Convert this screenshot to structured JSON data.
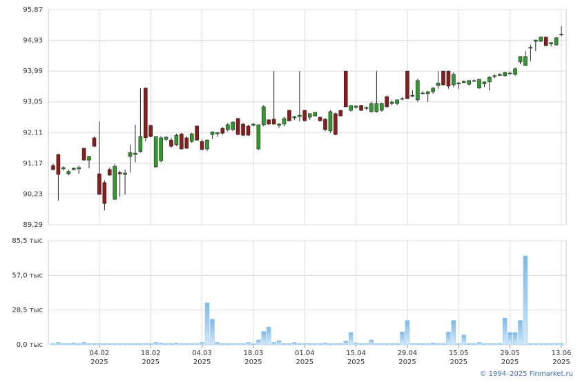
{
  "chart_data": {
    "type": "candlestick",
    "candles": [
      {
        "open": 91.1,
        "high": 91.15,
        "low": 90.96,
        "close": 90.98
      },
      {
        "open": 91.44,
        "high": 91.46,
        "low": 90.03,
        "close": 90.83
      },
      {
        "open": 91.0,
        "high": 91.08,
        "low": 90.96,
        "close": 91.04
      },
      {
        "open": 90.85,
        "high": 90.98,
        "low": 90.81,
        "close": 90.92
      },
      {
        "open": 90.98,
        "high": 91.04,
        "low": 90.96,
        "close": 91.02
      },
      {
        "open": 91.0,
        "high": 91.1,
        "low": 90.85,
        "close": 91.04
      },
      {
        "open": 91.63,
        "high": 91.65,
        "low": 91.25,
        "close": 91.27
      },
      {
        "open": 91.27,
        "high": 91.4,
        "low": 91.02,
        "close": 91.38
      },
      {
        "open": 91.95,
        "high": 91.99,
        "low": 91.67,
        "close": 91.69
      },
      {
        "open": 90.85,
        "high": 92.45,
        "low": 90.2,
        "close": 90.22
      },
      {
        "open": 90.58,
        "high": 90.65,
        "low": 89.73,
        "close": 89.94
      },
      {
        "open": 90.98,
        "high": 91.04,
        "low": 90.79,
        "close": 90.81
      },
      {
        "open": 90.07,
        "high": 91.15,
        "low": 90.05,
        "close": 91.08
      },
      {
        "open": 90.89,
        "high": 90.94,
        "low": 90.15,
        "close": 90.85
      },
      {
        "open": 90.83,
        "high": 90.98,
        "low": 90.22,
        "close": 90.87
      },
      {
        "open": 91.38,
        "high": 91.74,
        "low": 90.89,
        "close": 91.5
      },
      {
        "open": 91.44,
        "high": 92.35,
        "low": 91.2,
        "close": 91.48
      },
      {
        "open": 91.53,
        "high": 93.47,
        "low": 91.5,
        "close": 91.99
      },
      {
        "open": 93.47,
        "high": 93.49,
        "low": 91.84,
        "close": 91.95
      },
      {
        "open": 92.33,
        "high": 92.35,
        "low": 91.97,
        "close": 91.99
      },
      {
        "open": 91.06,
        "high": 92.0,
        "low": 91.04,
        "close": 91.99
      },
      {
        "open": 91.25,
        "high": 92.0,
        "low": 91.2,
        "close": 91.95
      },
      {
        "open": 91.9,
        "high": 92.0,
        "low": 91.85,
        "close": 91.97
      },
      {
        "open": 91.88,
        "high": 91.95,
        "low": 91.65,
        "close": 91.69
      },
      {
        "open": 91.74,
        "high": 92.08,
        "low": 91.7,
        "close": 92.03
      },
      {
        "open": 92.07,
        "high": 92.1,
        "low": 91.59,
        "close": 91.61
      },
      {
        "open": 91.95,
        "high": 92.0,
        "low": 91.61,
        "close": 91.63
      },
      {
        "open": 91.84,
        "high": 92.1,
        "low": 91.8,
        "close": 92.07
      },
      {
        "open": 92.31,
        "high": 92.33,
        "low": 91.86,
        "close": 91.88
      },
      {
        "open": 91.84,
        "high": 91.9,
        "low": 91.57,
        "close": 91.59
      },
      {
        "open": 91.61,
        "high": 91.9,
        "low": 91.55,
        "close": 91.88
      },
      {
        "open": 92.05,
        "high": 92.15,
        "low": 91.92,
        "close": 92.13
      },
      {
        "open": 92.07,
        "high": 92.13,
        "low": 91.98,
        "close": 92.11
      },
      {
        "open": 92.24,
        "high": 92.28,
        "low": 92.05,
        "close": 92.09
      },
      {
        "open": 92.2,
        "high": 92.4,
        "low": 92.15,
        "close": 92.35
      },
      {
        "open": 92.2,
        "high": 92.45,
        "low": 92.15,
        "close": 92.43
      },
      {
        "open": 92.54,
        "high": 92.56,
        "low": 92.03,
        "close": 92.05
      },
      {
        "open": 92.37,
        "high": 92.4,
        "low": 92.0,
        "close": 92.03
      },
      {
        "open": 92.31,
        "high": 92.35,
        "low": 92.01,
        "close": 92.03
      },
      {
        "open": 92.33,
        "high": 92.4,
        "low": 92.3,
        "close": 92.37
      },
      {
        "open": 91.61,
        "high": 92.35,
        "low": 91.58,
        "close": 92.35
      },
      {
        "open": 92.35,
        "high": 92.95,
        "low": 92.3,
        "close": 92.9
      },
      {
        "open": 92.5,
        "high": 92.52,
        "low": 92.35,
        "close": 92.37
      },
      {
        "open": 92.52,
        "high": 93.99,
        "low": 92.35,
        "close": 92.37
      },
      {
        "open": 92.33,
        "high": 92.4,
        "low": 92.25,
        "close": 92.37
      },
      {
        "open": 92.37,
        "high": 92.6,
        "low": 92.3,
        "close": 92.54
      },
      {
        "open": 92.79,
        "high": 92.81,
        "low": 92.45,
        "close": 92.47
      },
      {
        "open": 92.56,
        "high": 92.62,
        "low": 92.5,
        "close": 92.6
      },
      {
        "open": 92.6,
        "high": 93.99,
        "low": 92.45,
        "close": 92.64
      },
      {
        "open": 92.79,
        "high": 92.81,
        "low": 92.45,
        "close": 92.47
      },
      {
        "open": 92.58,
        "high": 92.7,
        "low": 92.5,
        "close": 92.69
      },
      {
        "open": 92.62,
        "high": 92.73,
        "low": 92.6,
        "close": 92.73
      },
      {
        "open": 92.58,
        "high": 92.6,
        "low": 92.45,
        "close": 92.47
      },
      {
        "open": 92.52,
        "high": 92.55,
        "low": 92.15,
        "close": 92.2
      },
      {
        "open": 92.16,
        "high": 92.8,
        "low": 92.1,
        "close": 92.75
      },
      {
        "open": 92.69,
        "high": 92.72,
        "low": 92.03,
        "close": 92.05
      },
      {
        "open": 92.79,
        "high": 92.8,
        "low": 92.6,
        "close": 92.62
      },
      {
        "open": 93.99,
        "high": 94.0,
        "low": 92.88,
        "close": 92.9
      },
      {
        "open": 92.79,
        "high": 92.95,
        "low": 92.75,
        "close": 92.94
      },
      {
        "open": 92.88,
        "high": 92.95,
        "low": 92.85,
        "close": 92.92
      },
      {
        "open": 92.94,
        "high": 92.96,
        "low": 92.77,
        "close": 92.79
      },
      {
        "open": 92.85,
        "high": 92.9,
        "low": 92.8,
        "close": 92.88
      },
      {
        "open": 92.75,
        "high": 93.05,
        "low": 92.72,
        "close": 93.0
      },
      {
        "open": 92.75,
        "high": 93.99,
        "low": 92.72,
        "close": 93.0
      },
      {
        "open": 92.79,
        "high": 93.02,
        "low": 92.75,
        "close": 93.0
      },
      {
        "open": 93.21,
        "high": 93.25,
        "low": 92.88,
        "close": 92.9
      },
      {
        "open": 93.0,
        "high": 93.1,
        "low": 92.95,
        "close": 93.04
      },
      {
        "open": 93.0,
        "high": 93.12,
        "low": 92.95,
        "close": 93.11
      },
      {
        "open": 93.13,
        "high": 93.2,
        "low": 93.1,
        "close": 93.15
      },
      {
        "open": 93.99,
        "high": 94.0,
        "low": 93.14,
        "close": 93.15
      },
      {
        "open": 93.22,
        "high": 93.4,
        "low": 93.2,
        "close": 93.25
      },
      {
        "open": 93.11,
        "high": 93.75,
        "low": 93.05,
        "close": 93.7
      },
      {
        "open": 93.3,
        "high": 93.38,
        "low": 93.28,
        "close": 93.32
      },
      {
        "open": 93.3,
        "high": 93.38,
        "low": 93.05,
        "close": 93.36
      },
      {
        "open": 93.36,
        "high": 93.5,
        "low": 93.3,
        "close": 93.47
      },
      {
        "open": 93.55,
        "high": 93.99,
        "low": 93.45,
        "close": 93.63
      },
      {
        "open": 93.99,
        "high": 94.0,
        "low": 93.55,
        "close": 93.57
      },
      {
        "open": 93.99,
        "high": 94.0,
        "low": 93.45,
        "close": 93.53
      },
      {
        "open": 93.57,
        "high": 93.95,
        "low": 93.5,
        "close": 93.89
      },
      {
        "open": 93.6,
        "high": 93.66,
        "low": 93.45,
        "close": 93.63
      },
      {
        "open": 93.64,
        "high": 93.7,
        "low": 93.62,
        "close": 93.68
      },
      {
        "open": 93.59,
        "high": 93.72,
        "low": 93.55,
        "close": 93.7
      },
      {
        "open": 93.68,
        "high": 93.74,
        "low": 93.66,
        "close": 93.7
      },
      {
        "open": 93.47,
        "high": 93.74,
        "low": 93.45,
        "close": 93.74
      },
      {
        "open": 93.6,
        "high": 93.68,
        "low": 93.5,
        "close": 93.66
      },
      {
        "open": 93.66,
        "high": 93.84,
        "low": 93.4,
        "close": 93.8
      },
      {
        "open": 93.82,
        "high": 93.89,
        "low": 93.78,
        "close": 93.85
      },
      {
        "open": 93.86,
        "high": 93.92,
        "low": 93.84,
        "close": 93.89
      },
      {
        "open": 93.85,
        "high": 93.97,
        "low": 93.82,
        "close": 93.95
      },
      {
        "open": 93.92,
        "high": 93.98,
        "low": 93.88,
        "close": 93.93
      },
      {
        "open": 93.89,
        "high": 94.1,
        "low": 93.85,
        "close": 94.06
      },
      {
        "open": 94.27,
        "high": 94.44,
        "low": 94.2,
        "close": 94.44
      },
      {
        "open": 94.16,
        "high": 94.6,
        "low": 94.14,
        "close": 94.44
      },
      {
        "open": 94.69,
        "high": 94.8,
        "low": 94.3,
        "close": 94.72
      },
      {
        "open": 94.9,
        "high": 94.95,
        "low": 94.6,
        "close": 94.94
      },
      {
        "open": 94.9,
        "high": 95.05,
        "low": 94.88,
        "close": 95.03
      },
      {
        "open": 95.03,
        "high": 95.05,
        "low": 94.75,
        "close": 94.77
      },
      {
        "open": 94.82,
        "high": 94.88,
        "low": 94.75,
        "close": 94.86
      },
      {
        "open": 94.79,
        "high": 95.03,
        "low": 94.77,
        "close": 95.01
      },
      {
        "open": 95.1,
        "high": 95.36,
        "low": 95.05,
        "close": 95.12
      }
    ],
    "volume": [
      1,
      2,
      1,
      1,
      1.5,
      1,
      2,
      1,
      1,
      1,
      1,
      1,
      1,
      1,
      1,
      1,
      1,
      1,
      1,
      1,
      2,
      1.5,
      1,
      1,
      1.5,
      1,
      1,
      1,
      1,
      2,
      34.5,
      21,
      2,
      1,
      1,
      1,
      1,
      1,
      2,
      1,
      4,
      11,
      14.6,
      2,
      3.5,
      1,
      1,
      2,
      1,
      1,
      1,
      1,
      1,
      1.5,
      1,
      1,
      1,
      3,
      10,
      1.5,
      1,
      1,
      4,
      1,
      1,
      1,
      1,
      1,
      10.5,
      20,
      1,
      1,
      1,
      1,
      1.5,
      1,
      1,
      10.5,
      20,
      1,
      8,
      1,
      1,
      2,
      1,
      1,
      1,
      1,
      22,
      10,
      10,
      20,
      73,
      1,
      1,
      1,
      1,
      1,
      1,
      1
    ],
    "categories": [
      null,
      null,
      null,
      null,
      null,
      null,
      null,
      null,
      null,
      "04.02",
      null,
      null,
      null,
      null,
      null,
      null,
      null,
      null,
      null,
      "18.02",
      null,
      null,
      null,
      null,
      null,
      null,
      null,
      null,
      null,
      "04.03",
      null,
      null,
      null,
      null,
      null,
      null,
      null,
      null,
      null,
      "18.03",
      null,
      null,
      null,
      null,
      null,
      null,
      null,
      null,
      null,
      "01.04",
      null,
      null,
      null,
      null,
      null,
      null,
      null,
      null,
      null,
      "15.04",
      null,
      null,
      null,
      null,
      null,
      null,
      null,
      null,
      null,
      "29.04",
      null,
      null,
      null,
      null,
      null,
      null,
      null,
      null,
      null,
      "15.05",
      null,
      null,
      null,
      null,
      null,
      null,
      null,
      null,
      null,
      "29.05",
      null,
      null,
      null,
      null,
      null,
      null,
      null,
      null,
      null,
      "13.06"
    ],
    "year_label": "2025",
    "up_color": "#2f9b2f",
    "down_color": "#8c1c1c",
    "volume_color": "#8ec5ef",
    "ylim": [
      89.29,
      95.87
    ],
    "yticks": [
      {
        "value": 89.29,
        "label": "89,29"
      },
      {
        "value": 90.23,
        "label": "90,23"
      },
      {
        "value": 91.17,
        "label": "91,17"
      },
      {
        "value": 92.11,
        "label": "92,11"
      },
      {
        "value": 93.05,
        "label": "93,05"
      },
      {
        "value": 93.99,
        "label": "93,99"
      },
      {
        "value": 94.93,
        "label": "94,93"
      },
      {
        "value": 95.87,
        "label": "95,87"
      }
    ],
    "y2lim": [
      0,
      85.5
    ],
    "y2ticks": [
      {
        "value": 0,
        "label": "0,0 тыс"
      },
      {
        "value": 28.5,
        "label": "28,5 тыс"
      },
      {
        "value": 57,
        "label": "57,0 тыс"
      },
      {
        "value": 85.5,
        "label": "85,5 тыс"
      }
    ],
    "grid": true,
    "credit": "© 1994–2025 Finmarket.ru"
  }
}
